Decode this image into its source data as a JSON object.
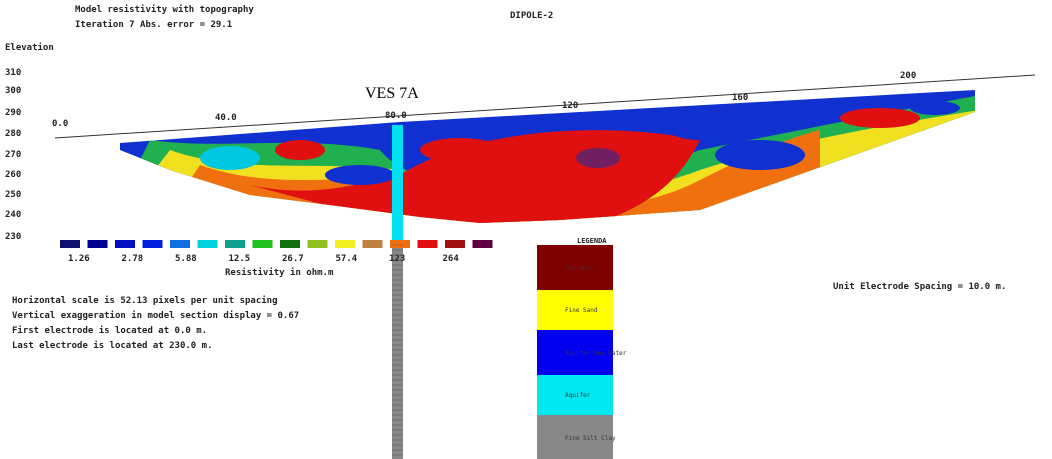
{
  "header": {
    "title": "Model resistivity with topography",
    "subtitle": "Iteration 7 Abs. error = 29.1",
    "array": "DIPOLE-2"
  },
  "section": {
    "y_axis_label": "Elevation",
    "elevation_labels": [
      "310",
      "300",
      "290",
      "280",
      "270",
      "260",
      "250",
      "240",
      "230"
    ],
    "distance_labels": [
      "0.0",
      "40.0",
      "80.0",
      "120",
      "160",
      "200"
    ],
    "ves_label": "VES 7A"
  },
  "color_scale": {
    "labels": [
      "1.26",
      "2.78",
      "5.88",
      "12.5",
      "26.7",
      "57.4",
      "123",
      "264"
    ],
    "title": "Resistivity in ohm.m"
  },
  "info": [
    "Horizontal scale is 52.13 pixels per unit spacing",
    "Vertical exaggeration in model section display = 0.67",
    "First electrode is located at 0.0 m.",
    "Last electrode is located at 230.0 m."
  ],
  "spacing": "Unit Electrode Spacing = 10.0 m.",
  "legend": {
    "title": "LEGENDA",
    "items": [
      "Top Soil",
      "Fine Sand",
      "Aquifer Sea Water",
      "Aquifer",
      "Fine Silt Clay"
    ]
  }
}
